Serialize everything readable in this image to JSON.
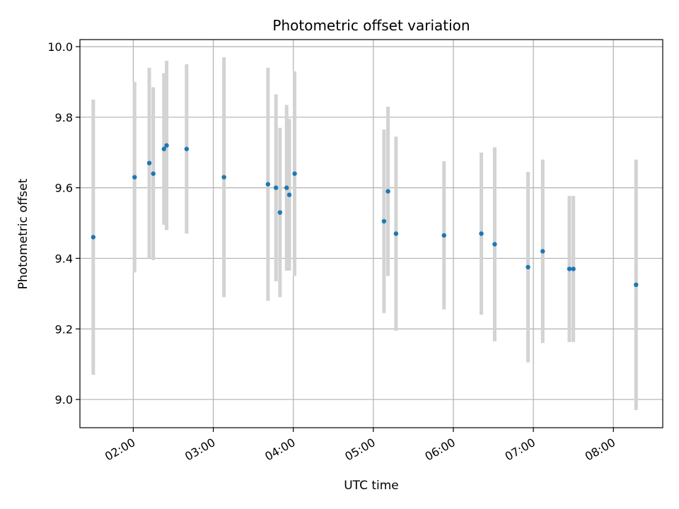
{
  "chart_data": {
    "type": "scatter",
    "title": "Photometric offset variation",
    "xlabel": "UTC time",
    "ylabel": "Photometric offset",
    "x_unit": "UTC time of day (HH:MM)",
    "xlim": [
      "01:20",
      "08:37"
    ],
    "ylim": [
      8.92,
      10.02
    ],
    "x_ticks": [
      "02:00",
      "03:00",
      "04:00",
      "05:00",
      "06:00",
      "07:00",
      "08:00"
    ],
    "y_ticks": [
      9.0,
      9.2,
      9.4,
      9.6,
      9.8,
      10.0
    ],
    "y_tick_labels": [
      "9.0",
      "9.2",
      "9.4",
      "9.6",
      "9.8",
      "10.0"
    ],
    "grid": true,
    "x_tick_rotation": "30deg",
    "colors": {
      "point": "#1f77b4",
      "errorbar": "#d3d3d3",
      "grid": "#b0b0b0"
    },
    "points": [
      {
        "time": "01:30",
        "y": 9.46,
        "err": 0.39
      },
      {
        "time": "02:01",
        "y": 9.63,
        "err": 0.27
      },
      {
        "time": "02:12",
        "y": 9.67,
        "err": 0.27
      },
      {
        "time": "02:15",
        "y": 9.64,
        "err": 0.245
      },
      {
        "time": "02:23",
        "y": 9.71,
        "err": 0.215
      },
      {
        "time": "02:25",
        "y": 9.72,
        "err": 0.24
      },
      {
        "time": "02:40",
        "y": 9.71,
        "err": 0.24
      },
      {
        "time": "03:08",
        "y": 9.63,
        "err": 0.34
      },
      {
        "time": "03:41",
        "y": 9.61,
        "err": 0.33
      },
      {
        "time": "03:47",
        "y": 9.6,
        "err": 0.265
      },
      {
        "time": "03:50",
        "y": 9.53,
        "err": 0.24
      },
      {
        "time": "03:55",
        "y": 9.6,
        "err": 0.235
      },
      {
        "time": "03:57",
        "y": 9.58,
        "err": 0.215
      },
      {
        "time": "04:01",
        "y": 9.64,
        "err": 0.29
      },
      {
        "time": "05:08",
        "y": 9.505,
        "err": 0.26
      },
      {
        "time": "05:11",
        "y": 9.59,
        "err": 0.24
      },
      {
        "time": "05:17",
        "y": 9.47,
        "err": 0.275
      },
      {
        "time": "05:53",
        "y": 9.465,
        "err": 0.21
      },
      {
        "time": "06:21",
        "y": 9.47,
        "err": 0.23
      },
      {
        "time": "06:31",
        "y": 9.44,
        "err": 0.275
      },
      {
        "time": "06:56",
        "y": 9.375,
        "err": 0.27
      },
      {
        "time": "07:07",
        "y": 9.42,
        "err": 0.26
      },
      {
        "time": "07:27",
        "y": 9.37,
        "err": 0.207
      },
      {
        "time": "07:30",
        "y": 9.37,
        "err": 0.207
      },
      {
        "time": "08:17",
        "y": 9.325,
        "err": 0.355
      }
    ]
  }
}
